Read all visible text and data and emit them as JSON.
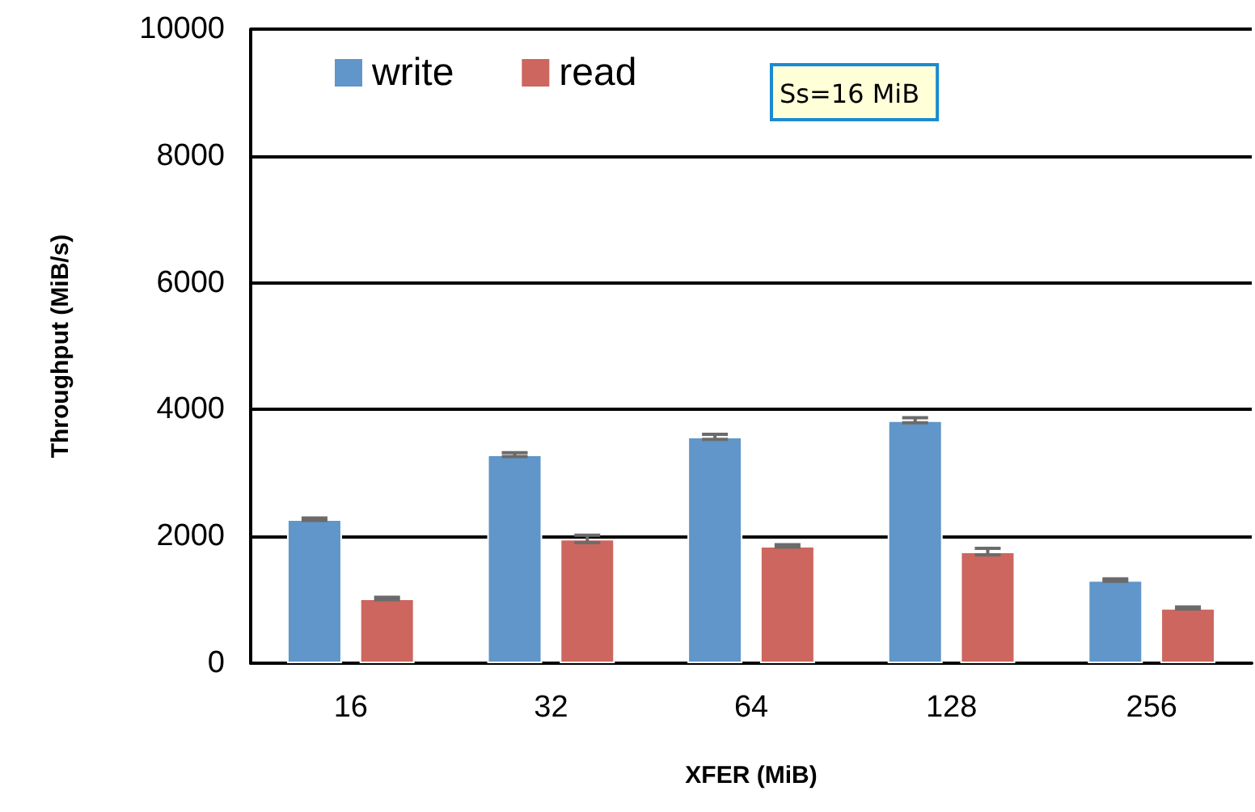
{
  "chart_data": {
    "type": "bar",
    "xlabel": "XFER (MiB)",
    "ylabel": "Throughput (MiB/s)",
    "categories": [
      "16",
      "32",
      "64",
      "128",
      "256"
    ],
    "series": [
      {
        "name": "write",
        "color": "#6096c9",
        "values": [
          2270,
          3290,
          3570,
          3830,
          1310
        ],
        "errors": [
          20,
          30,
          40,
          40,
          20
        ]
      },
      {
        "name": "read",
        "color": "#cd665e",
        "values": [
          1020,
          1960,
          1850,
          1760,
          870
        ],
        "errors": [
          20,
          60,
          20,
          50,
          15
        ]
      }
    ],
    "ylim": [
      0,
      10000
    ],
    "yticks": [
      0,
      2000,
      4000,
      6000,
      8000,
      10000
    ],
    "grid": "y",
    "legend": "top left",
    "annotations": [
      "Ss=16 MiB"
    ]
  }
}
